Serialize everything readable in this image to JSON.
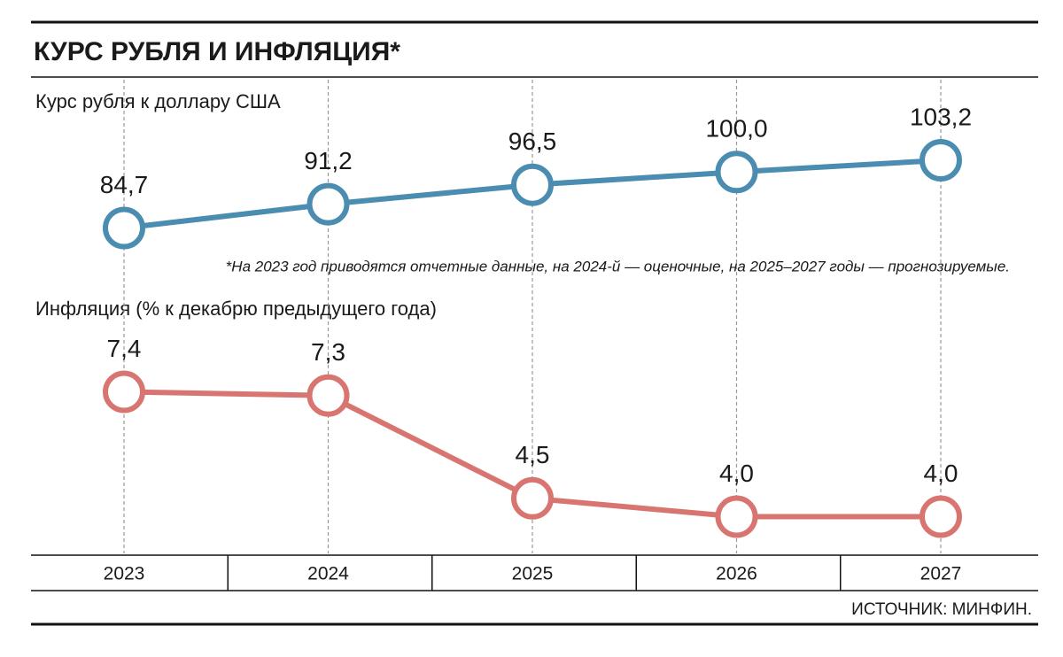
{
  "title": "КУРС РУБЛЯ И ИНФЛЯЦИЯ*",
  "note": "*На 2023 год приводятся отчетные данные, на 2024-й — оценочные, на 2025–2027 годы — прогнозируемые.",
  "source": "ИСТОЧНИК: МИНФИН.",
  "chart_data": [
    {
      "type": "line",
      "title": "Курс рубля к доллару США",
      "values": [
        84.7,
        91.2,
        96.5,
        100.0,
        103.2
      ],
      "value_labels": [
        "84,7",
        "91,2",
        "96,5",
        "100,0",
        "103,2"
      ],
      "color": "#4a8db0",
      "ylim": [
        72,
        124
      ]
    },
    {
      "type": "line",
      "title": "Инфляция (% к декабрю предыдущего года)",
      "categories": [
        "2023",
        "2024",
        "2025",
        "2026",
        "2027"
      ],
      "values": [
        7.4,
        7.3,
        4.5,
        4.0,
        4.0
      ],
      "value_labels": [
        "7,4",
        "7,3",
        "4,5",
        "4,0",
        "4,0"
      ],
      "color": "#d97570",
      "ylim": [
        3,
        9.15
      ]
    }
  ]
}
